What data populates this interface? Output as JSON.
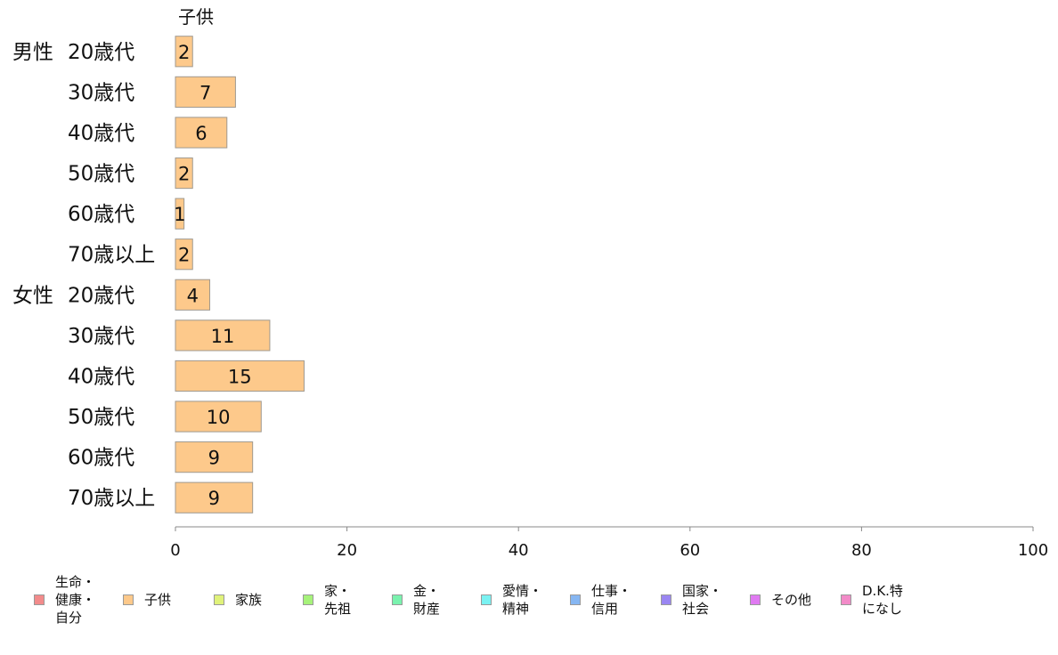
{
  "chart_data": {
    "type": "bar",
    "orientation": "horizontal",
    "series_title": "子供",
    "groups": [
      {
        "label": "男性",
        "categories": [
          "20歳代",
          "30歳代",
          "40歳代",
          "50歳代",
          "60歳代",
          "70歳以上"
        ],
        "values": [
          2,
          7,
          6,
          2,
          1,
          2
        ]
      },
      {
        "label": "女性",
        "categories": [
          "20歳代",
          "30歳代",
          "40歳代",
          "50歳代",
          "60歳代",
          "70歳以上"
        ],
        "values": [
          4,
          11,
          15,
          10,
          9,
          9
        ]
      }
    ],
    "xlim": [
      0,
      100
    ],
    "xticks": [
      0,
      20,
      40,
      60,
      80,
      100
    ],
    "bar_color": "#FDC98B",
    "bar_stroke": "#A0998F",
    "legend": [
      {
        "label": "生命・\n健康・\n自分",
        "color": "#F28B8B"
      },
      {
        "label": "子供",
        "color": "#FDC98B"
      },
      {
        "label": "家族",
        "color": "#E0F27A"
      },
      {
        "label": "家・\n先祖",
        "color": "#A6F27A"
      },
      {
        "label": "金・\n財産",
        "color": "#7AF2AE"
      },
      {
        "label": "愛情・\n精神",
        "color": "#7AF2F2"
      },
      {
        "label": "仕事・\n信用",
        "color": "#86B6F2"
      },
      {
        "label": "国家・\n社会",
        "color": "#9A86F2"
      },
      {
        "label": "その他",
        "color": "#E07AF2"
      },
      {
        "label": "D.K.特\nになし",
        "color": "#F28BC8"
      }
    ],
    "legend_position": "bottom"
  }
}
